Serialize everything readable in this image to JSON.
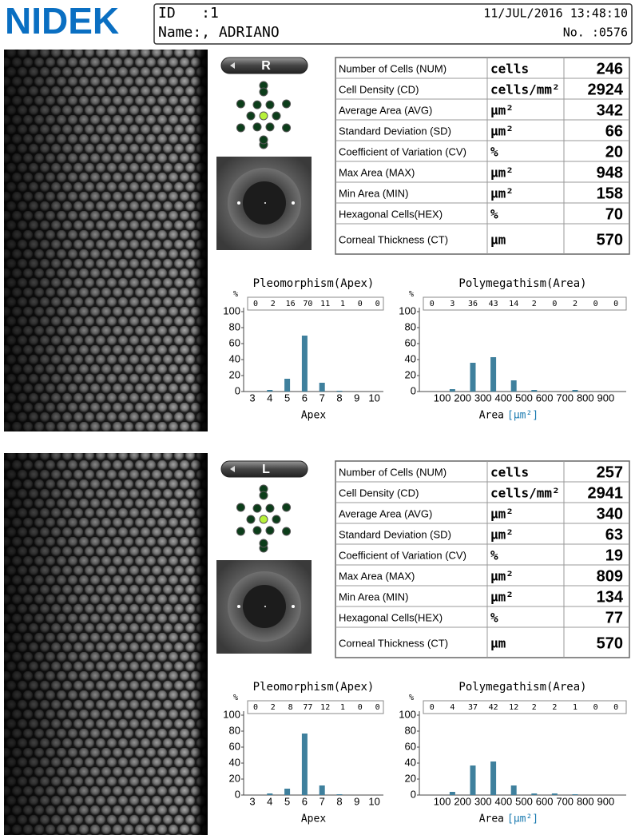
{
  "header": {
    "logo": "NIDEK",
    "id": "ID   :1",
    "name": "Name:, ADRIANO",
    "datetime": "11/JUL/2016 13:48:10",
    "number": "No. :0576"
  },
  "eyes": [
    {
      "side": "R",
      "table": {
        "rows": [
          [
            "Number of Cells (NUM)",
            "cells",
            246
          ],
          [
            "Cell Density (CD)",
            "cells/mm²",
            2924
          ],
          [
            "Average Area (AVG)",
            "μm²",
            342
          ],
          [
            "Standard Deviation (SD)",
            "μm²",
            66
          ],
          [
            "Coefficient of Variation (CV)",
            "%",
            20
          ],
          [
            "Max Area (MAX)",
            "μm²",
            948
          ],
          [
            "Min Area (MIN)",
            "μm²",
            158
          ],
          [
            "Hexagonal Cells(HEX)",
            "%",
            70
          ],
          [
            "Corneal Thickness (CT)",
            "μm",
            570
          ]
        ]
      },
      "charts": [
        {
          "type": "bar",
          "title": "Pleomorphism(Apex)",
          "ylabel": "%",
          "xlabel": "Apex",
          "categories": [
            "3",
            "4",
            "5",
            "6",
            "7",
            "8",
            "9",
            "10"
          ],
          "values": [
            0,
            2,
            16,
            70,
            11,
            1,
            0,
            0
          ],
          "ylim": [
            0,
            100
          ],
          "yticks": [
            0,
            20,
            40,
            60,
            80,
            100
          ],
          "color": "#3f809d",
          "grid": false
        },
        {
          "type": "histogram",
          "title": "Polymegathism(Area)",
          "ylabel": "%",
          "xlabel": "Area",
          "xlabel_unit": "[μm²]",
          "bins": [
            0,
            100,
            200,
            300,
            400,
            500,
            600,
            700,
            800,
            900,
            1000
          ],
          "values": [
            0,
            3,
            36,
            43,
            14,
            2,
            0,
            2,
            0,
            0
          ],
          "xlim": [
            0,
            1000
          ],
          "xticks": [
            100,
            200,
            300,
            400,
            500,
            600,
            700,
            800,
            900
          ],
          "ylim": [
            0,
            100
          ],
          "yticks": [
            0,
            20,
            40,
            60,
            80,
            100
          ],
          "color": "#3f809d",
          "grid": false
        }
      ]
    },
    {
      "side": "L",
      "table": {
        "rows": [
          [
            "Number of Cells (NUM)",
            "cells",
            257
          ],
          [
            "Cell Density (CD)",
            "cells/mm²",
            2941
          ],
          [
            "Average Area (AVG)",
            "μm²",
            340
          ],
          [
            "Standard Deviation (SD)",
            "μm²",
            63
          ],
          [
            "Coefficient of Variation (CV)",
            "%",
            19
          ],
          [
            "Max Area (MAX)",
            "μm²",
            809
          ],
          [
            "Min Area (MIN)",
            "μm²",
            134
          ],
          [
            "Hexagonal Cells(HEX)",
            "%",
            77
          ],
          [
            "Corneal Thickness (CT)",
            "μm",
            570
          ]
        ]
      },
      "charts": [
        {
          "type": "bar",
          "title": "Pleomorphism(Apex)",
          "ylabel": "%",
          "xlabel": "Apex",
          "categories": [
            "3",
            "4",
            "5",
            "6",
            "7",
            "8",
            "9",
            "10"
          ],
          "values": [
            0,
            2,
            8,
            77,
            12,
            1,
            0,
            0
          ],
          "ylim": [
            0,
            100
          ],
          "yticks": [
            0,
            20,
            40,
            60,
            80,
            100
          ],
          "color": "#3f809d",
          "grid": false
        },
        {
          "type": "histogram",
          "title": "Polymegathism(Area)",
          "ylabel": "%",
          "xlabel": "Area",
          "xlabel_unit": "[μm²]",
          "bins": [
            0,
            100,
            200,
            300,
            400,
            500,
            600,
            700,
            800,
            900,
            1000
          ],
          "values": [
            0,
            4,
            37,
            42,
            12,
            2,
            2,
            1,
            0,
            0
          ],
          "xlim": [
            0,
            1000
          ],
          "xticks": [
            100,
            200,
            300,
            400,
            500,
            600,
            700,
            800,
            900
          ],
          "ylim": [
            0,
            100
          ],
          "yticks": [
            0,
            20,
            40,
            60,
            80,
            100
          ],
          "color": "#3f809d",
          "grid": false
        }
      ]
    }
  ]
}
